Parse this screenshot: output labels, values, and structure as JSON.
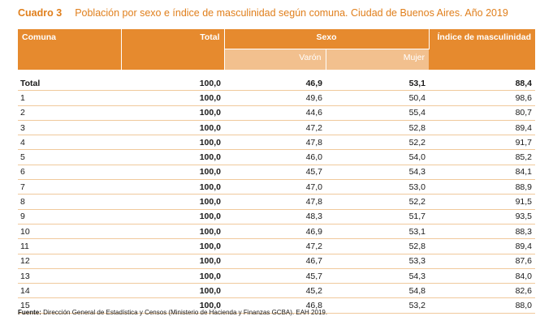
{
  "title": {
    "label": "Cuadro 3",
    "text": "Población por sexo e índice de masculinidad según comuna. Ciudad de Buenos Aires. Año 2019"
  },
  "headers": {
    "comuna": "Comuna",
    "total": "Total",
    "sexo": "Sexo",
    "varon": "Varón",
    "mujer": "Mujer",
    "indice": "Índice de masculinidad"
  },
  "rows": [
    {
      "comuna": "Total",
      "total": "100,0",
      "varon": "46,9",
      "mujer": "53,1",
      "indice": "88,4"
    },
    {
      "comuna": "1",
      "total": "100,0",
      "varon": "49,6",
      "mujer": "50,4",
      "indice": "98,6"
    },
    {
      "comuna": "2",
      "total": "100,0",
      "varon": "44,6",
      "mujer": "55,4",
      "indice": "80,7"
    },
    {
      "comuna": "3",
      "total": "100,0",
      "varon": "47,2",
      "mujer": "52,8",
      "indice": "89,4"
    },
    {
      "comuna": "4",
      "total": "100,0",
      "varon": "47,8",
      "mujer": "52,2",
      "indice": "91,7"
    },
    {
      "comuna": "5",
      "total": "100,0",
      "varon": "46,0",
      "mujer": "54,0",
      "indice": "85,2"
    },
    {
      "comuna": "6",
      "total": "100,0",
      "varon": "45,7",
      "mujer": "54,3",
      "indice": "84,1"
    },
    {
      "comuna": "7",
      "total": "100,0",
      "varon": "47,0",
      "mujer": "53,0",
      "indice": "88,9"
    },
    {
      "comuna": "8",
      "total": "100,0",
      "varon": "47,8",
      "mujer": "52,2",
      "indice": "91,5"
    },
    {
      "comuna": "9",
      "total": "100,0",
      "varon": "48,3",
      "mujer": "51,7",
      "indice": "93,5"
    },
    {
      "comuna": "10",
      "total": "100,0",
      "varon": "46,9",
      "mujer": "53,1",
      "indice": "88,3"
    },
    {
      "comuna": "11",
      "total": "100,0",
      "varon": "47,2",
      "mujer": "52,8",
      "indice": "89,4"
    },
    {
      "comuna": "12",
      "total": "100,0",
      "varon": "46,7",
      "mujer": "53,3",
      "indice": "87,6"
    },
    {
      "comuna": "13",
      "total": "100,0",
      "varon": "45,7",
      "mujer": "54,3",
      "indice": "84,0"
    },
    {
      "comuna": "14",
      "total": "100,0",
      "varon": "45,2",
      "mujer": "54,8",
      "indice": "82,6"
    },
    {
      "comuna": "15",
      "total": "100,0",
      "varon": "46,8",
      "mujer": "53,2",
      "indice": "88,0"
    }
  ],
  "source": {
    "label": "Fuente:",
    "text": "Dirección General de Estadística y Censos (Ministerio de Hacienda y Finanzas GCBA). EAH 2019."
  },
  "colors": {
    "title": "#e07f1c",
    "header_bg": "#e68a2e",
    "subheader_bg": "#f2c08e",
    "row_rule": "#f0c99c"
  }
}
